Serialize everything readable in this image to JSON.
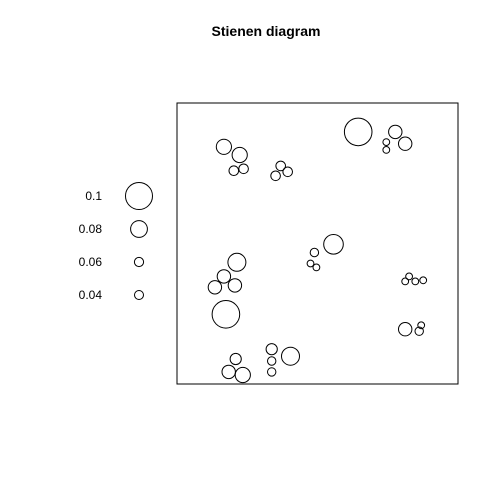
{
  "chart_data": {
    "type": "scatter",
    "title": "Stienen diagram",
    "xlim": [
      0,
      1
    ],
    "ylim": [
      0,
      1
    ],
    "axes_visible": false,
    "box": true,
    "legend": {
      "placement": "left",
      "entries": [
        {
          "label": "0.1",
          "value": 0.1
        },
        {
          "label": "0.08",
          "value": 0.08
        },
        {
          "label": "0.06",
          "value": 0.06
        },
        {
          "label": "0.04",
          "value": 0.04
        }
      ]
    },
    "points": [
      {
        "x": 0.167,
        "y": 0.844,
        "r": 0.027
      },
      {
        "x": 0.223,
        "y": 0.815,
        "r": 0.027
      },
      {
        "x": 0.202,
        "y": 0.759,
        "r": 0.017
      },
      {
        "x": 0.237,
        "y": 0.766,
        "r": 0.017
      },
      {
        "x": 0.351,
        "y": 0.741,
        "r": 0.017
      },
      {
        "x": 0.369,
        "y": 0.776,
        "r": 0.017
      },
      {
        "x": 0.394,
        "y": 0.755,
        "r": 0.017
      },
      {
        "x": 0.645,
        "y": 0.897,
        "r": 0.049
      },
      {
        "x": 0.777,
        "y": 0.897,
        "r": 0.024
      },
      {
        "x": 0.812,
        "y": 0.855,
        "r": 0.024
      },
      {
        "x": 0.745,
        "y": 0.833,
        "r": 0.012
      },
      {
        "x": 0.745,
        "y": 0.861,
        "r": 0.012
      },
      {
        "x": 0.557,
        "y": 0.497,
        "r": 0.035
      },
      {
        "x": 0.489,
        "y": 0.468,
        "r": 0.015
      },
      {
        "x": 0.475,
        "y": 0.429,
        "r": 0.012
      },
      {
        "x": 0.496,
        "y": 0.415,
        "r": 0.012
      },
      {
        "x": 0.826,
        "y": 0.383,
        "r": 0.012
      },
      {
        "x": 0.812,
        "y": 0.365,
        "r": 0.012
      },
      {
        "x": 0.848,
        "y": 0.365,
        "r": 0.012
      },
      {
        "x": 0.876,
        "y": 0.369,
        "r": 0.012
      },
      {
        "x": 0.213,
        "y": 0.433,
        "r": 0.032
      },
      {
        "x": 0.167,
        "y": 0.383,
        "r": 0.024
      },
      {
        "x": 0.135,
        "y": 0.344,
        "r": 0.024
      },
      {
        "x": 0.206,
        "y": 0.351,
        "r": 0.024
      },
      {
        "x": 0.174,
        "y": 0.248,
        "r": 0.049
      },
      {
        "x": 0.812,
        "y": 0.195,
        "r": 0.024
      },
      {
        "x": 0.869,
        "y": 0.209,
        "r": 0.012
      },
      {
        "x": 0.862,
        "y": 0.188,
        "r": 0.015
      },
      {
        "x": 0.337,
        "y": 0.124,
        "r": 0.02
      },
      {
        "x": 0.337,
        "y": 0.082,
        "r": 0.015
      },
      {
        "x": 0.337,
        "y": 0.043,
        "r": 0.015
      },
      {
        "x": 0.404,
        "y": 0.099,
        "r": 0.032
      },
      {
        "x": 0.209,
        "y": 0.089,
        "r": 0.02
      },
      {
        "x": 0.184,
        "y": 0.043,
        "r": 0.024
      },
      {
        "x": 0.234,
        "y": 0.032,
        "r": 0.027
      }
    ]
  }
}
